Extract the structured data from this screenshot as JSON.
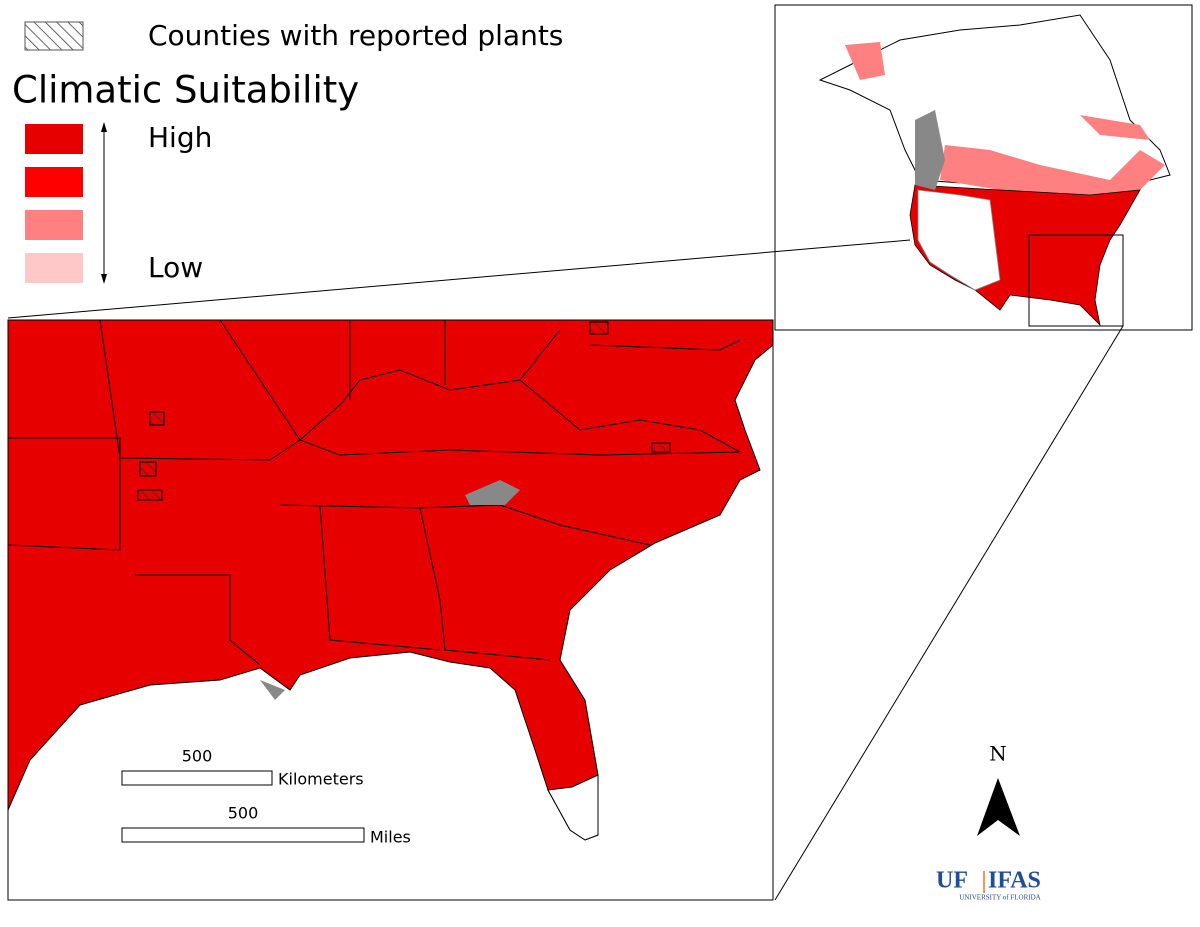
{
  "legend": {
    "hatch_label": "Counties with reported plants",
    "title": "Climatic Suitability",
    "high": "High",
    "low": "Low"
  },
  "scale_bar": {
    "km_value": 500,
    "km_unit": "Kilometers",
    "mi_value": 500,
    "mi_unit": "Miles"
  },
  "north_arrow": "N",
  "logo": {
    "uf": "UF",
    "ifas": "IFAS",
    "university": "UNIVERSITY of FLORIDA"
  }
}
